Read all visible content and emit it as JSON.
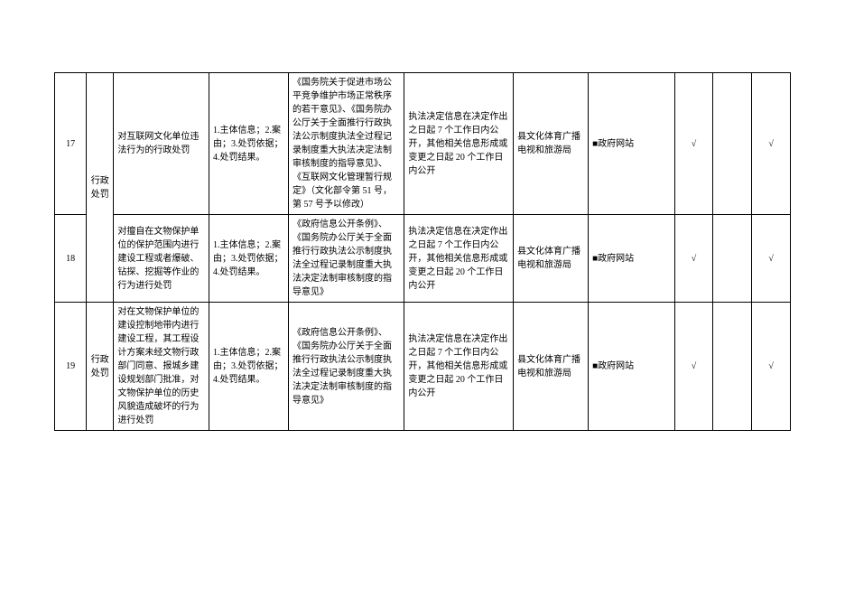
{
  "rows": [
    {
      "seq": "17",
      "cat": "行政处罚",
      "desc": "对互联网文化单位违法行为的行政处罚",
      "main": "1.主体信息；2.案由；3.处罚依据；4.处罚结果。",
      "basis": "《国务院关于促进市场公平竞争维护市场正常秩序的若干意见》、《国务院办公厅关于全面推行行政执法公示制度执法全过程记录制度重大执法决定法制审核制度的指导意见》、《互联网文化管理暂行规定》（文化部令第 51 号，第 57 号予以修改）",
      "time": "执法决定信息在决定作出之日起 7 个工作日内公开，其他相关信息形成或变更之日起 20 个工作日内公开",
      "dept": "县文化体育广播电视和旅游局",
      "channel": "■政府网站",
      "chk1": "√",
      "chk2": "",
      "chk3": "√"
    },
    {
      "seq": "18",
      "cat": "",
      "desc": "对擅自在文物保护单位的保护范围内进行建设工程或者爆破、钻探、挖掘等作业的行为进行处罚",
      "main": "1.主体信息；2.案由；3.处罚依据；4.处罚结果。",
      "basis": "《政府信息公开条例》、《国务院办公厅关于全面推行行政执法公示制度执法全过程记录制度重大执法决定法制审核制度的指导意见》",
      "time": "执法决定信息在决定作出之日起 7 个工作日内公开，其他相关信息形成或变更之日起 20 个工作日内公开",
      "dept": "县文化体育广播电视和旅游局",
      "channel": "■政府网站",
      "chk1": "√",
      "chk2": "",
      "chk3": "√"
    },
    {
      "seq": "19",
      "cat": "行政处罚",
      "desc": "对在文物保护单位的建设控制地带内进行建设工程，其工程设计方案未经文物行政部门同意、报城乡建设规划部门批准，对文物保护单位的历史风貌造成破坏的行为进行处罚",
      "main": "1.主体信息；2.案由；3.处罚依据；4.处罚结果。",
      "basis": "《政府信息公开条例》、《国务院办公厅关于全面推行行政执法公示制度执法全过程记录制度重大执法决定法制审核制度的指导意见》",
      "time": "执法决定信息在决定作出之日起 7 个工作日内公开，其他相关信息形成或变更之日起 20 个工作日内公开",
      "dept": "县文化体育广播电视和旅游局",
      "channel": "■政府网站",
      "chk1": "√",
      "chk2": "",
      "chk3": "√"
    }
  ]
}
